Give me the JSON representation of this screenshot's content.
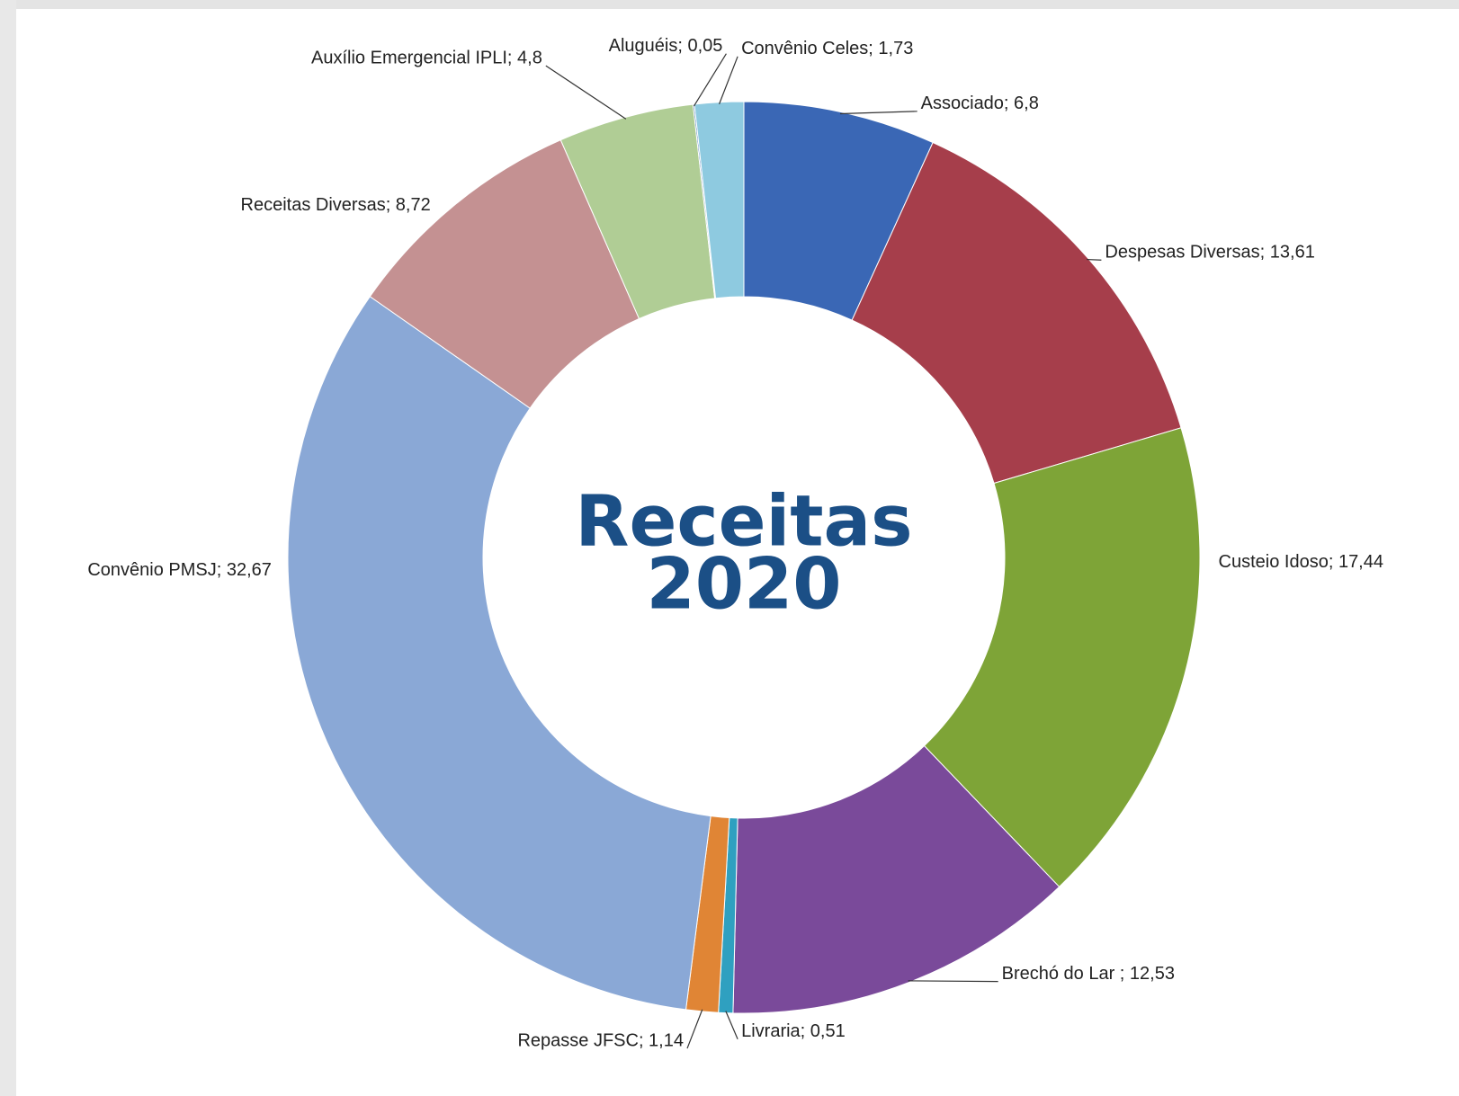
{
  "chart_data": {
    "type": "donut",
    "title": [
      "Receitas",
      "2020"
    ],
    "values": [
      6.8,
      13.61,
      17.44,
      12.53,
      0.51,
      1.14,
      32.67,
      8.72,
      4.8,
      0.05,
      1.73
    ],
    "value_labels": [
      "Associado; 6,8",
      "Despesas Diversas; 13,61",
      "Custeio Idoso; 17,44",
      "Brechó do Lar ; 12,53",
      "Livraria; 0,51",
      "Repasse JFSC; 1,14",
      "Convênio PMSJ; 32,67",
      "Receitas Diversas; 8,72",
      "Auxílio Emergencial IPLI; 4,8",
      "Aluguéis; 0,05",
      "Convênio Celes; 1,73"
    ],
    "colors": [
      "#3a67b5",
      "#a63e4b",
      "#7ea437",
      "#7a4a9a",
      "#2fa0c0",
      "#e08535",
      "#8aa8d6",
      "#c49192",
      "#b0cd95",
      "#4a78b8",
      "#8ecae0"
    ]
  }
}
